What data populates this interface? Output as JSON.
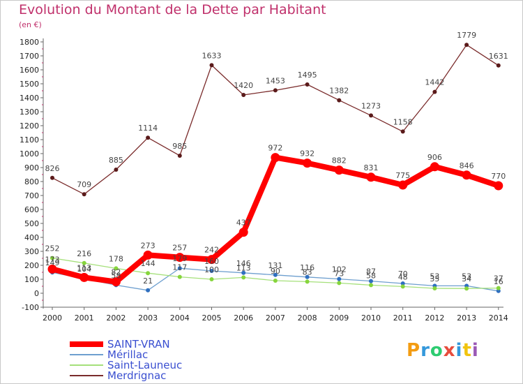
{
  "chart_data": {
    "type": "line",
    "title": "Evolution du Montant de la Dette par Habitant",
    "subtitle": "(en €)",
    "xlabel": "",
    "ylabel": "",
    "x": [
      "2000",
      "2001",
      "2002",
      "2003",
      "2004",
      "2005",
      "2006",
      "2007",
      "2008",
      "2009",
      "2010",
      "2011",
      "2012",
      "2013",
      "2014"
    ],
    "ylim": [
      -100,
      1800
    ],
    "yticks": [
      "-100",
      "0",
      "100",
      "200",
      "300",
      "400",
      "500",
      "600",
      "700",
      "800",
      "900",
      "1000",
      "1100",
      "1200",
      "1300",
      "1400",
      "1500",
      "1600",
      "1700",
      "1800"
    ],
    "grid": false,
    "legend_position": "bottom-left",
    "series": [
      {
        "name": "SAINT-VRAN",
        "color": "#ff0000",
        "marker": "#ff0000",
        "values": [
          173,
          113,
          82,
          273,
          257,
          242,
          437,
          972,
          932,
          882,
          831,
          775,
          906,
          846,
          770
        ],
        "labels": [
          "173",
          "113",
          "82",
          "273",
          "257",
          "242",
          "437",
          "972",
          "932",
          "882",
          "831",
          "775",
          "906",
          "846",
          "770"
        ]
      },
      {
        "name": "Mérillac",
        "color": "#6e9fcf",
        "marker": "#2f6fbf",
        "values": [
          149,
          104,
          58,
          21,
          179,
          160,
          146,
          131,
          116,
          102,
          87,
          70,
          53,
          53,
          16
        ],
        "labels": [
          "149",
          "104",
          "58",
          "21",
          "179",
          "160",
          "146",
          "131",
          "116",
          "102",
          "87",
          "70",
          "53",
          "53",
          "16"
        ]
      },
      {
        "name": "Saint-Launeuc",
        "color": "#a5e07a",
        "marker": "#86d53c",
        "values": [
          252,
          216,
          178,
          144,
          117,
          100,
          113,
          90,
          83,
          73,
          58,
          48,
          35,
          34,
          37
        ],
        "labels": [
          "252",
          "216",
          "178",
          "144",
          "117",
          "100",
          "113",
          "90",
          "83",
          "73",
          "58",
          "48",
          "35",
          "34",
          "37"
        ]
      },
      {
        "name": "Merdrignac",
        "color": "#7a2b2b",
        "marker": "#5a1a1a",
        "values": [
          826,
          709,
          885,
          1114,
          985,
          1633,
          1420,
          1453,
          1495,
          1382,
          1273,
          1158,
          1442,
          1779,
          1631
        ],
        "labels": [
          "826",
          "709",
          "885",
          "1114",
          "985",
          "1633",
          "1420",
          "1453",
          "1495",
          "1382",
          "1273",
          "1158",
          "1442",
          "1779",
          "1631"
        ]
      }
    ]
  },
  "legend": {
    "items": [
      "SAINT-VRAN",
      "Mérillac",
      "Saint-Launeuc",
      "Merdrignac"
    ]
  },
  "logo": {
    "letters": [
      "P",
      "r",
      "o",
      "x",
      "i",
      "t",
      "i"
    ],
    "colors": [
      "#f39c12",
      "#3498db",
      "#2ecc71",
      "#e74c3c",
      "#3498db",
      "#f1c40f",
      "#9b59b6"
    ]
  }
}
